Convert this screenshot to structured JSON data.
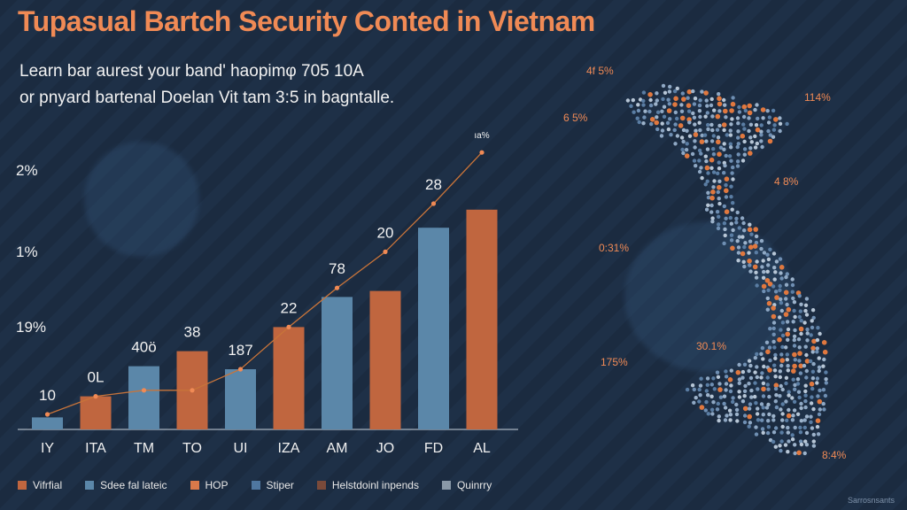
{
  "title": "Tupasual Bartch Security Conted in Vietnam",
  "subtitle_line1": "Learn bar aurest your band' haopimφ 705 10A",
  "subtitle_line2": "or pnyard bartenal Doelan Vit tam 3:5 in bagntalle.",
  "colors": {
    "orange": "#c0663f",
    "blue": "#5b87a9",
    "accent": "#f08a55",
    "line": "#c8743a"
  },
  "chart_data": {
    "type": "bar",
    "categories": [
      "IY",
      "ITA",
      "TM",
      "TO",
      "UI",
      "IZA",
      "AM",
      "JO",
      "FD",
      "AL"
    ],
    "values": [
      4,
      11,
      21,
      26,
      20,
      34,
      44,
      46,
      67,
      73
    ],
    "bar_colors": [
      "blue",
      "orange",
      "blue",
      "orange",
      "blue",
      "orange",
      "blue",
      "orange",
      "blue",
      "orange"
    ],
    "line_values": [
      5,
      11,
      13,
      13,
      20,
      34,
      47,
      59,
      75,
      92
    ],
    "data_labels": [
      "10",
      "0L",
      "40ö",
      "38",
      "187",
      "22",
      "78",
      "20",
      "28",
      "ıа%"
    ],
    "y_tick_labels": [
      "19%",
      "1%",
      "2%"
    ],
    "ylim": [
      0,
      100
    ]
  },
  "legend": [
    {
      "label": "Vifrfial",
      "color": "#c0663f"
    },
    {
      "label": "Sdee fal lateic",
      "color": "#5b87a9"
    },
    {
      "label": "HOP",
      "color": "#d9794a"
    },
    {
      "label": "Stiper",
      "color": "#4f77a0"
    },
    {
      "label": "Helstdoinl inpends",
      "color": "#7a4a3a"
    },
    {
      "label": "Quinrry",
      "color": "#8a99a8"
    }
  ],
  "map_labels": [
    {
      "text": "4f 5%"
    },
    {
      "text": "6 5%"
    },
    {
      "text": "114%"
    },
    {
      "text": "4 8%"
    },
    {
      "text": "0:31%"
    },
    {
      "text": "30.1%"
    },
    {
      "text": "175%"
    },
    {
      "text": "8:4%"
    }
  ],
  "watermark": "Sarrosnsants"
}
